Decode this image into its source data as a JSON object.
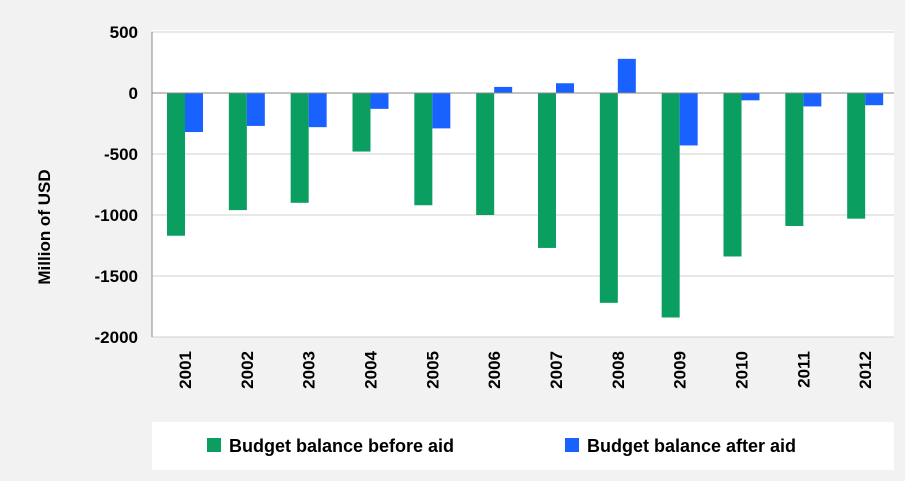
{
  "chart_data": {
    "type": "bar",
    "title": "",
    "xlabel": "",
    "ylabel": "Million of USD",
    "ylim": [
      -2000,
      500
    ],
    "yticks": [
      500,
      0,
      -500,
      -1000,
      -1500,
      -2000
    ],
    "ytick_labels": [
      "500",
      "0",
      "-500",
      "-1000",
      "-1500",
      "-2000"
    ],
    "grid": true,
    "legend_position": "bottom",
    "categories": [
      "2001",
      "2002",
      "2003",
      "2004",
      "2005",
      "2006",
      "2007",
      "2008",
      "2009",
      "2010",
      "2011",
      "2012"
    ],
    "series": [
      {
        "name": "Budget balance before aid",
        "color": "#0a9e61",
        "values": [
          -1170,
          -960,
          -900,
          -480,
          -920,
          -1000,
          -1270,
          -1720,
          -1840,
          -1340,
          -1090,
          -1030
        ]
      },
      {
        "name": "Budget balance after aid",
        "color": "#1a62ff",
        "values": [
          -320,
          -270,
          -280,
          -130,
          -290,
          50,
          80,
          280,
          -430,
          -60,
          -110,
          -100
        ]
      }
    ]
  }
}
